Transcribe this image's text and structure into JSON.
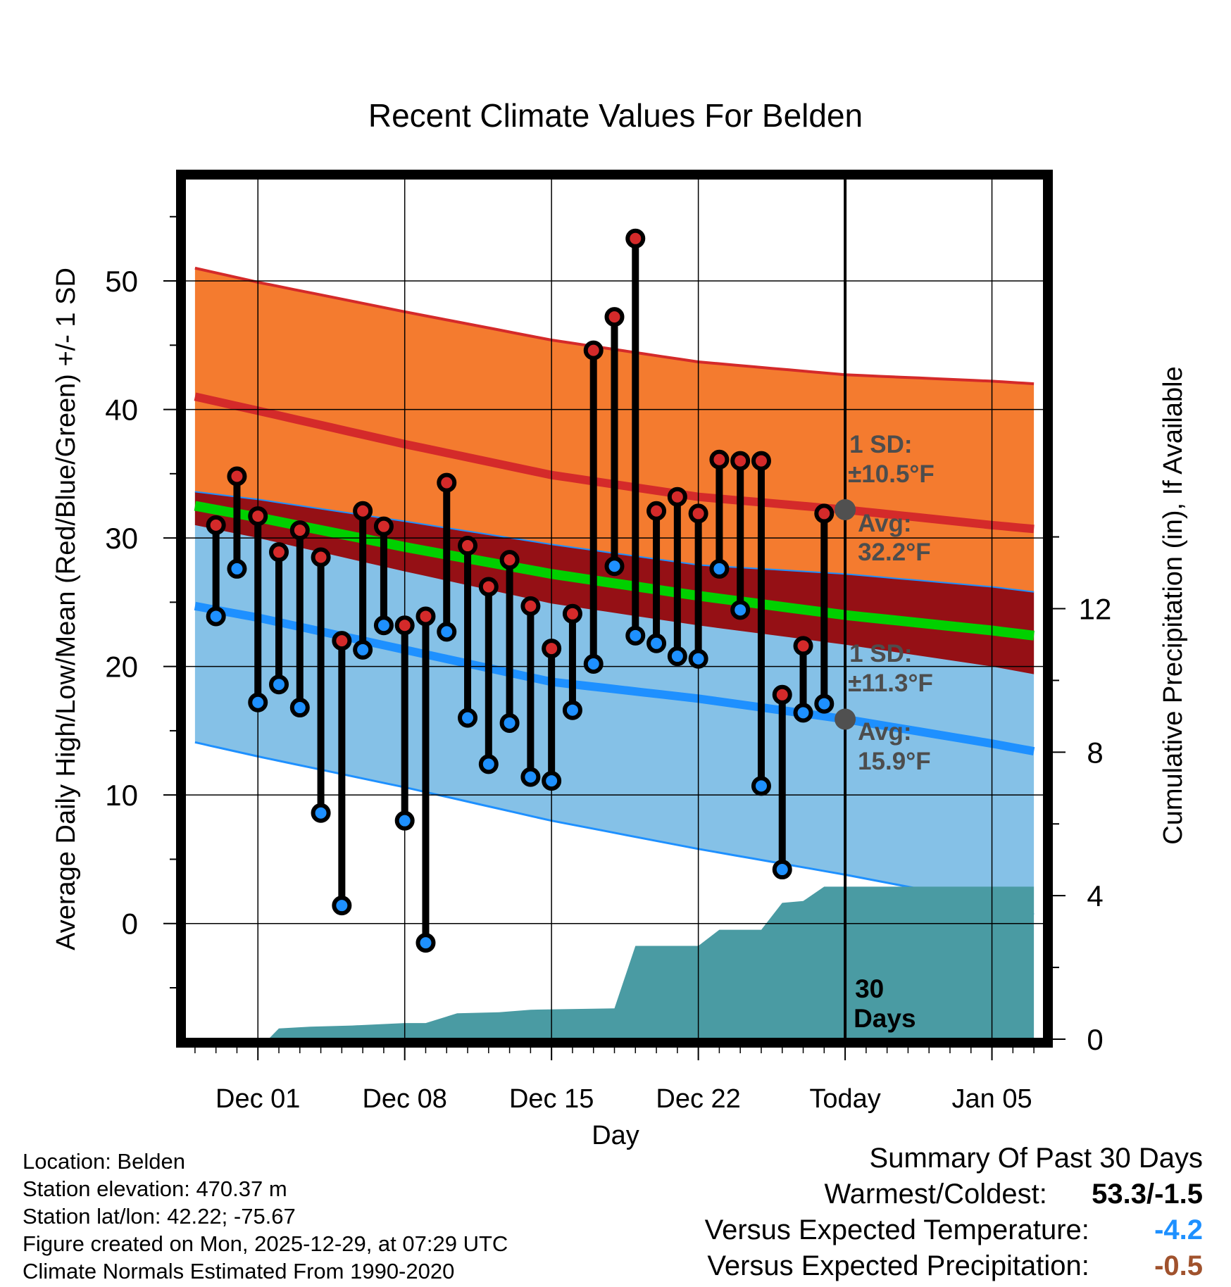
{
  "chart_data": {
    "type": "line",
    "title": "Recent Climate Values For Belden",
    "xlabel": "Day",
    "ylabel": "Average Daily High/Low/Mean (Red/Blue/Green) +/- 1 SD",
    "y2label": "Cumulative Precipitation (in), If Available",
    "ylim": [
      -9,
      58
    ],
    "y2lim": [
      0,
      24
    ],
    "xlim": [
      -3.5,
      37.5
    ],
    "yticks": [
      0,
      10,
      20,
      30,
      40,
      50
    ],
    "y2ticks": [
      0,
      4,
      8,
      12
    ],
    "xticks": [
      {
        "x": 0,
        "label": "Dec 01"
      },
      {
        "x": 7,
        "label": "Dec 08"
      },
      {
        "x": 14,
        "label": "Dec 15"
      },
      {
        "x": 21,
        "label": "Dec 22"
      },
      {
        "x": 28,
        "label": "Today"
      },
      {
        "x": 35,
        "label": "Jan 05"
      }
    ],
    "today_x": 28,
    "normals_x": [
      -3,
      0,
      7,
      14,
      21,
      28,
      35,
      37
    ],
    "normal_high_mean": [
      41.0,
      39.9,
      37.3,
      34.9,
      33.2,
      32.2,
      31.0,
      30.7
    ],
    "normal_high_plus_sd": [
      51.0,
      49.9,
      47.6,
      45.4,
      43.7,
      42.7,
      42.2,
      42.0
    ],
    "normal_high_minus_sd": [
      31.0,
      30.0,
      27.4,
      24.9,
      23.2,
      21.7,
      20.0,
      19.4
    ],
    "normal_low_mean": [
      24.7,
      23.8,
      21.3,
      18.8,
      17.5,
      15.9,
      14.0,
      13.4
    ],
    "normal_low_plus_sd": [
      33.6,
      33.0,
      31.3,
      29.5,
      27.9,
      27.2,
      26.2,
      25.8
    ],
    "normal_low_minus_sd": [
      14.1,
      13.0,
      10.6,
      8.0,
      5.8,
      3.8,
      1.6,
      0.7
    ],
    "normal_mean": [
      32.5,
      31.6,
      29.3,
      27.2,
      25.5,
      24.0,
      22.8,
      22.4
    ],
    "series": [
      {
        "name": "High",
        "color": "#d42a2a",
        "x": [
          -2,
          -1,
          0,
          1,
          2,
          3,
          4,
          5,
          6,
          7,
          8,
          9,
          10,
          11,
          12,
          13,
          14,
          15,
          16,
          17,
          18,
          19,
          20,
          21,
          22,
          23,
          24,
          25,
          26,
          27
        ],
        "values": [
          31.0,
          34.8,
          31.7,
          28.9,
          30.6,
          28.5,
          22.0,
          32.1,
          30.9,
          23.2,
          23.9,
          34.3,
          29.4,
          26.2,
          28.3,
          24.7,
          21.4,
          24.1,
          44.6,
          47.2,
          53.3,
          32.1,
          33.2,
          31.9,
          36.1,
          36.0,
          36.0,
          17.8,
          21.6,
          31.9
        ]
      },
      {
        "name": "Low",
        "color": "#1e90ff",
        "x": [
          -2,
          -1,
          0,
          1,
          2,
          3,
          4,
          5,
          6,
          7,
          8,
          9,
          10,
          11,
          12,
          13,
          14,
          15,
          16,
          17,
          18,
          19,
          20,
          21,
          22,
          23,
          24,
          25,
          26,
          27
        ],
        "values": [
          23.9,
          27.6,
          17.2,
          18.6,
          16.8,
          8.6,
          1.4,
          21.3,
          23.2,
          8.0,
          -1.5,
          22.7,
          16.0,
          12.4,
          15.6,
          11.4,
          11.1,
          16.6,
          20.2,
          27.8,
          22.4,
          21.8,
          20.8,
          20.6,
          27.6,
          24.4,
          10.7,
          4.2,
          16.4,
          17.1
        ]
      },
      {
        "name": "Cumulative Precipitation",
        "color": "#4a9ba3",
        "x": [
          0.5,
          1.0,
          2.5,
          4.5,
          7.0,
          8.0,
          9.5,
          11.5,
          13.0,
          17.0,
          18.0,
          21.0,
          22.0,
          24.0,
          25.0,
          26.0,
          27.0,
          28.0,
          37.0
        ],
        "values": [
          0.0,
          0.3,
          0.35,
          0.38,
          0.45,
          0.45,
          0.72,
          0.75,
          0.82,
          0.86,
          2.6,
          2.6,
          3.05,
          3.05,
          3.8,
          3.85,
          4.25,
          4.25,
          4.25
        ]
      }
    ],
    "annotations": {
      "high_sd": "1 SD:",
      "high_sd_value": "±10.5°F",
      "high_avg": "Avg:",
      "high_avg_value": "32.2°F",
      "low_sd": "1 SD:",
      "low_sd_value": "±11.3°F",
      "low_avg": "Avg:",
      "low_avg_value": "15.9°F",
      "days_num": "30",
      "days_word": "Days"
    },
    "colors": {
      "high_band": "#f47b2f",
      "high_line": "#d42a2a",
      "low_band": "#85c1e7",
      "low_line": "#1e90ff",
      "overlap": "#951015",
      "mean": "#00d000",
      "precip": "#4a9ba3",
      "annotation": "#4d4d4d"
    }
  },
  "footer": {
    "location": "Location: Belden",
    "elevation": "Station elevation: 470.37 m",
    "latlon": "Station lat/lon: 42.22; -75.67",
    "created": "Figure created on Mon, 2025-12-29, at 07:29 UTC",
    "normals": "Climate Normals Estimated From 1990-2020"
  },
  "summary": {
    "title": "Summary Of Past 30 Days",
    "warm_cold_label": "Warmest/Coldest:",
    "warm_cold_value": "53.3/-1.5",
    "temp_label": "Versus Expected Temperature:",
    "temp_value": "-4.2",
    "temp_color": "#1e90ff",
    "precip_label": "Versus Expected Precipitation:",
    "precip_value": "-0.5",
    "precip_color": "#a0522d"
  }
}
